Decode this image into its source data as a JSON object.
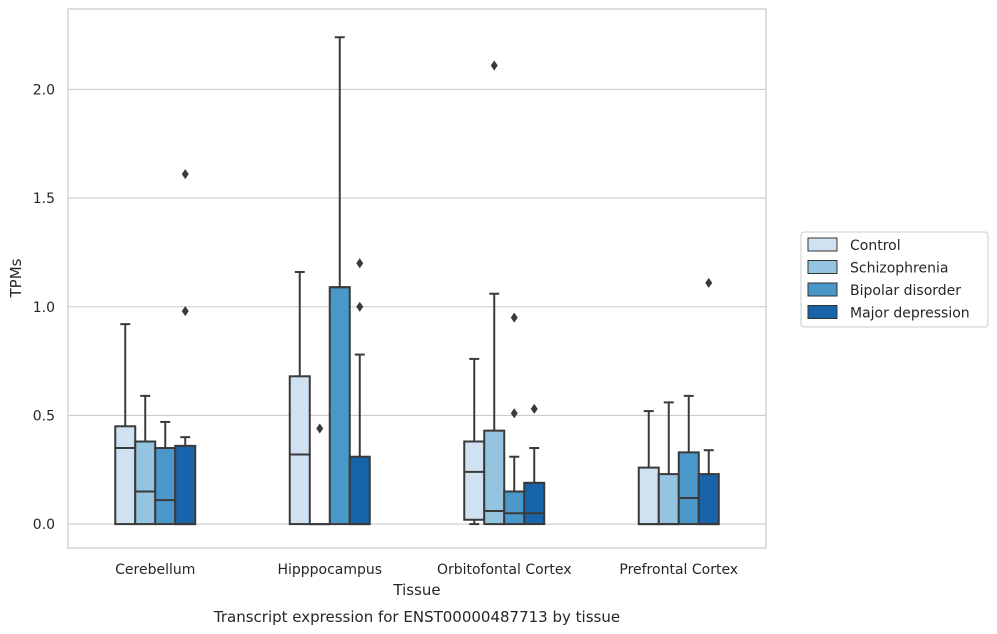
{
  "caption": "Transcript expression for ENST00000487713 by tissue",
  "chart_data": {
    "type": "box",
    "title": "",
    "xlabel": "Tissue",
    "ylabel": "TPMs",
    "ylim": [
      -0.11,
      2.37
    ],
    "yticks": [
      0.0,
      0.5,
      1.0,
      1.5,
      2.0
    ],
    "ytick_labels": [
      "0.0",
      "0.5",
      "1.0",
      "1.5",
      "2.0"
    ],
    "grid": "horizontal",
    "legend_position": "right",
    "categories": [
      "Cerebellum",
      "Hipppocampus",
      "Orbitofontal Cortex",
      "Prefrontal Cortex"
    ],
    "series": [
      {
        "name": "Control",
        "color": "#d0e1f2",
        "boxes": [
          {
            "whislo": 0.0,
            "q1": 0.0,
            "med": 0.35,
            "q3": 0.45,
            "whishi": 0.92,
            "fliers": []
          },
          {
            "whislo": 0.0,
            "q1": 0.0,
            "med": 0.32,
            "q3": 0.68,
            "whishi": 1.16,
            "fliers": []
          },
          {
            "whislo": 0.0,
            "q1": 0.02,
            "med": 0.24,
            "q3": 0.38,
            "whishi": 0.76,
            "fliers": []
          },
          {
            "whislo": 0.0,
            "q1": 0.0,
            "med": 0.0,
            "q3": 0.26,
            "whishi": 0.52,
            "fliers": []
          }
        ]
      },
      {
        "name": "Schizophrenia",
        "color": "#94c4df",
        "boxes": [
          {
            "whislo": 0.0,
            "q1": 0.0,
            "med": 0.15,
            "q3": 0.38,
            "whishi": 0.59,
            "fliers": []
          },
          {
            "whislo": 0.0,
            "q1": 0.0,
            "med": 0.0,
            "q3": 0.0,
            "whishi": 0.0,
            "fliers": [
              0.44
            ]
          },
          {
            "whislo": 0.0,
            "q1": 0.0,
            "med": 0.06,
            "q3": 0.43,
            "whishi": 1.06,
            "fliers": [
              2.11
            ]
          },
          {
            "whislo": 0.0,
            "q1": 0.0,
            "med": 0.0,
            "q3": 0.23,
            "whishi": 0.56,
            "fliers": []
          }
        ]
      },
      {
        "name": "Bipolar disorder",
        "color": "#4a98c9",
        "boxes": [
          {
            "whislo": 0.0,
            "q1": 0.0,
            "med": 0.11,
            "q3": 0.35,
            "whishi": 0.47,
            "fliers": []
          },
          {
            "whislo": 0.0,
            "q1": 0.0,
            "med": 1.09,
            "q3": 1.09,
            "whishi": 2.24,
            "fliers": []
          },
          {
            "whislo": 0.0,
            "q1": 0.0,
            "med": 0.05,
            "q3": 0.15,
            "whishi": 0.31,
            "fliers": [
              0.51,
              0.95
            ]
          },
          {
            "whislo": 0.0,
            "q1": 0.0,
            "med": 0.12,
            "q3": 0.33,
            "whishi": 0.59,
            "fliers": []
          }
        ]
      },
      {
        "name": "Major depression",
        "color": "#1764ab",
        "boxes": [
          {
            "whislo": 0.0,
            "q1": 0.0,
            "med": 0.0,
            "q3": 0.36,
            "whishi": 0.4,
            "fliers": [
              0.98,
              1.61
            ]
          },
          {
            "whislo": 0.0,
            "q1": 0.0,
            "med": 0.0,
            "q3": 0.31,
            "whishi": 0.78,
            "fliers": [
              1.0,
              1.2
            ]
          },
          {
            "whislo": 0.0,
            "q1": 0.0,
            "med": 0.05,
            "q3": 0.19,
            "whishi": 0.35,
            "fliers": [
              0.53
            ]
          },
          {
            "whislo": 0.0,
            "q1": 0.0,
            "med": 0.0,
            "q3": 0.23,
            "whishi": 0.34,
            "fliers": [
              1.11
            ]
          }
        ]
      }
    ]
  }
}
